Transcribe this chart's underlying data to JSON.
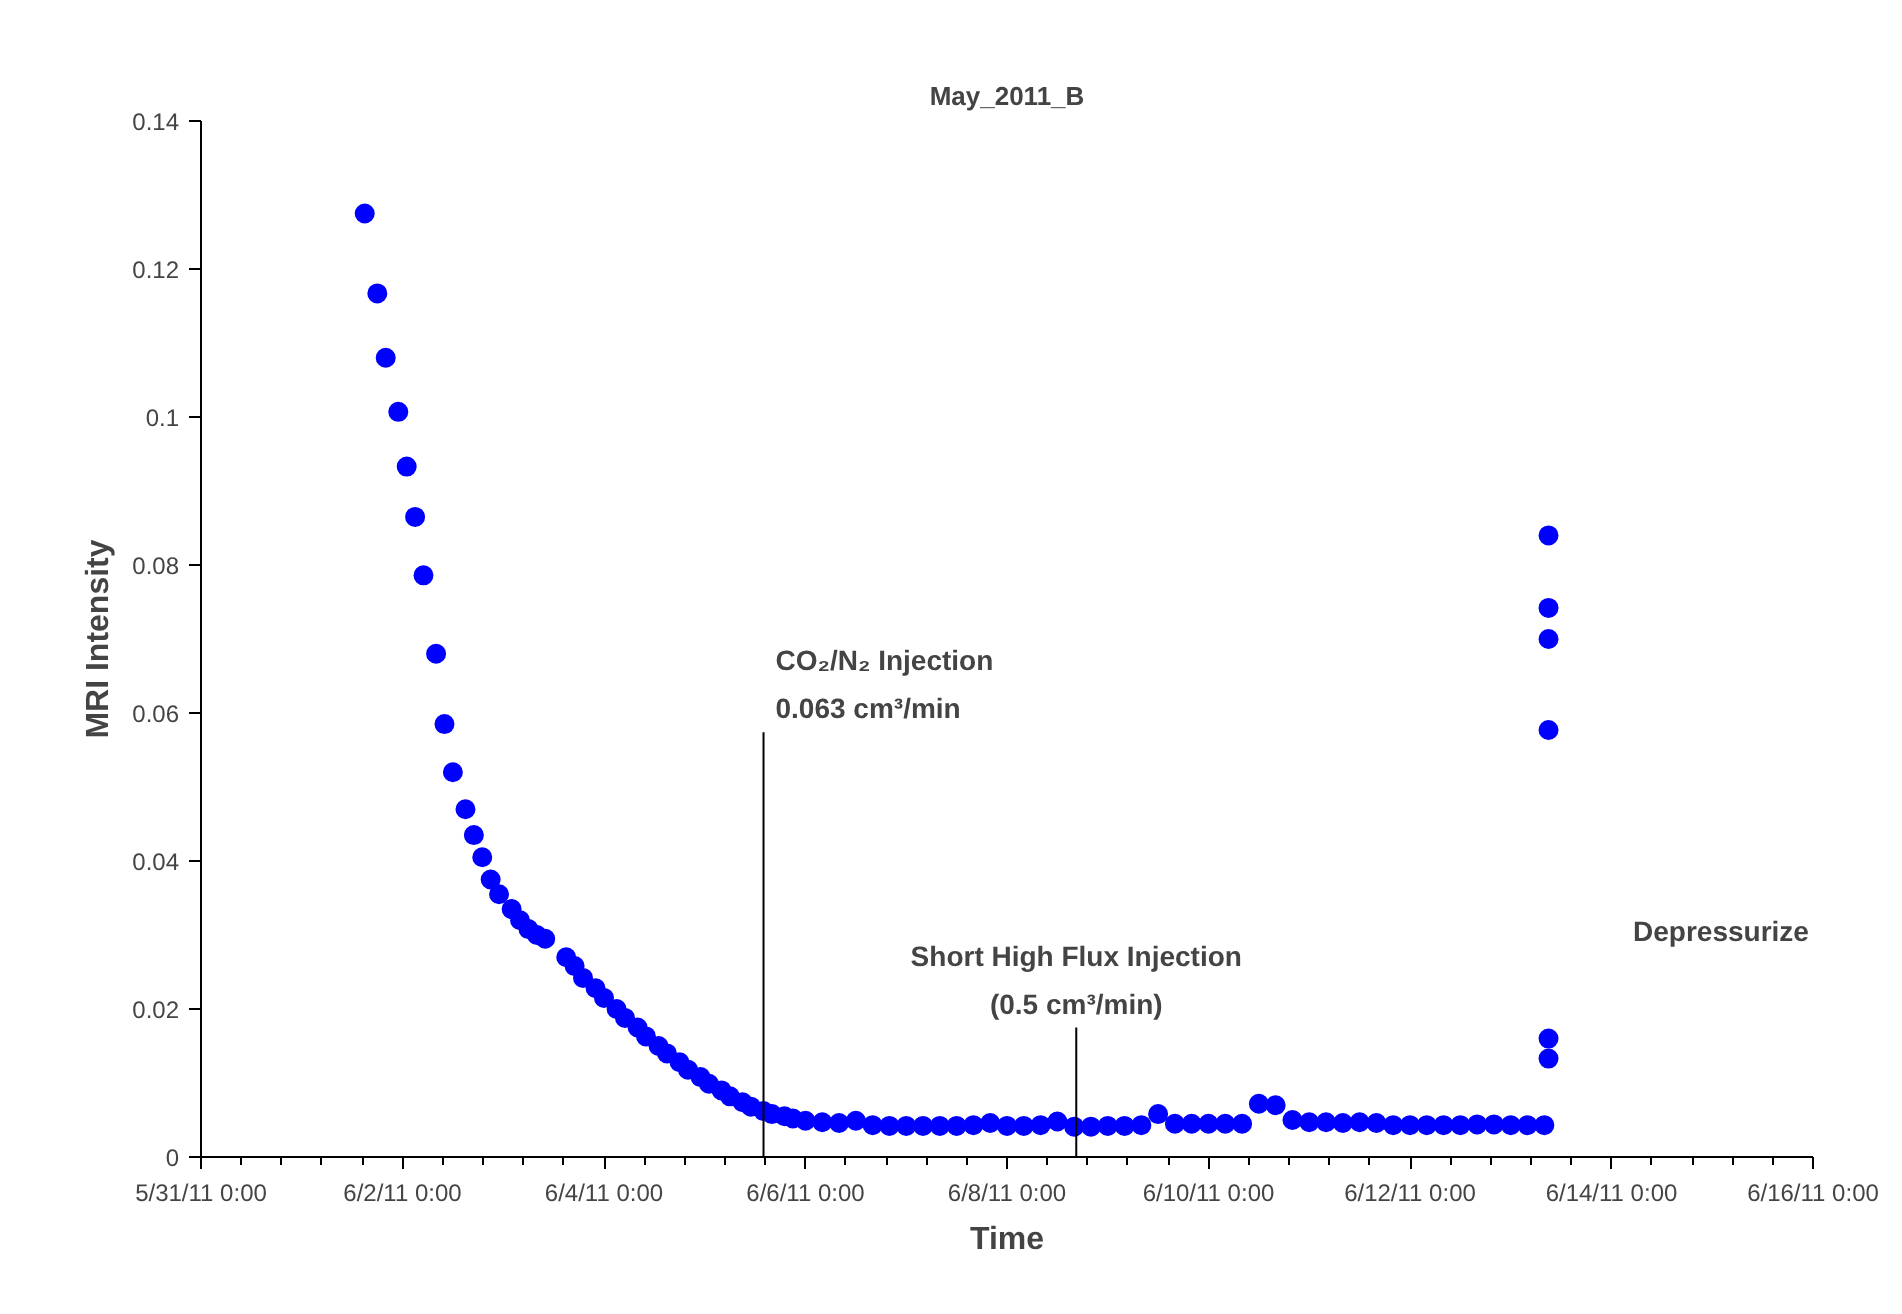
{
  "chart_data": {
    "type": "scatter",
    "title": "May_2011_B",
    "xlabel": "Time",
    "ylabel": "MRI Intensity",
    "xlim": [
      "2011-05-31",
      "2011-06-16"
    ],
    "xticks": [
      {
        "value": "2011-05-31",
        "label": "5/31/11 0:00"
      },
      {
        "value": "2011-06-02",
        "label": "6/2/11 0:00"
      },
      {
        "value": "2011-06-04",
        "label": "6/4/11 0:00"
      },
      {
        "value": "2011-06-06",
        "label": "6/6/11 0:00"
      },
      {
        "value": "2011-06-08",
        "label": "6/8/11 0:00"
      },
      {
        "value": "2011-06-10",
        "label": "6/10/11 0:00"
      },
      {
        "value": "2011-06-12",
        "label": "6/12/11 0:00"
      },
      {
        "value": "2011-06-14",
        "label": "6/14/11 0:00"
      },
      {
        "value": "2011-06-16",
        "label": "6/16/11 0:00"
      }
    ],
    "ylim": [
      0,
      0.14
    ],
    "yticks": [
      0,
      0.02,
      0.04,
      0.06,
      0.08,
      0.1,
      0.12,
      0.14
    ],
    "grid": false,
    "marker": "circle",
    "ref_lines": [
      {
        "axis": "x",
        "value": "2011-06-05T14:00",
        "label": "CO₂/N₂ Injection\n0.063 cm³/min"
      },
      {
        "axis": "x",
        "value": "2011-06-08T16:30",
        "label": "Short High Flux Injection\n(0.5 cm³/min)"
      }
    ],
    "annotations": [
      "Depressurize"
    ],
    "series": [
      {
        "color": "#0000ff",
        "x": [
          "2011-06-01T15:00",
          "2011-06-01T18:00",
          "2011-06-01T20:00",
          "2011-06-01T23:00",
          "2011-06-02T01:00",
          "2011-06-02T03:00",
          "2011-06-02T05:00",
          "2011-06-02T08:00",
          "2011-06-02T10:00",
          "2011-06-02T12:00",
          "2011-06-02T15:00",
          "2011-06-02T17:00",
          "2011-06-02T19:00",
          "2011-06-02T21:00",
          "2011-06-02T23:00",
          "2011-06-03T02:00",
          "2011-06-03T04:00",
          "2011-06-03T06:00",
          "2011-06-03T08:00",
          "2011-06-03T10:00",
          "2011-06-03T15:00",
          "2011-06-03T17:00",
          "2011-06-03T19:00",
          "2011-06-03T22:00",
          "2011-06-04T00:00",
          "2011-06-04T03:00",
          "2011-06-04T05:00",
          "2011-06-04T08:00",
          "2011-06-04T10:00",
          "2011-06-04T13:00",
          "2011-06-04T15:00",
          "2011-06-04T18:00",
          "2011-06-04T20:00",
          "2011-06-04T23:00",
          "2011-06-05T01:00",
          "2011-06-05T04:00",
          "2011-06-05T06:00",
          "2011-06-05T09:00",
          "2011-06-05T11:00",
          "2011-06-05T14:00",
          "2011-06-05T16:00",
          "2011-06-05T19:00",
          "2011-06-05T21:00",
          "2011-06-06T00:00",
          "2011-06-06T04:00",
          "2011-06-06T08:00",
          "2011-06-06T12:00",
          "2011-06-06T16:00",
          "2011-06-06T20:00",
          "2011-06-07T00:00",
          "2011-06-07T04:00",
          "2011-06-07T08:00",
          "2011-06-07T12:00",
          "2011-06-07T16:00",
          "2011-06-07T20:00",
          "2011-06-08T00:00",
          "2011-06-08T04:00",
          "2011-06-08T08:00",
          "2011-06-08T12:00",
          "2011-06-08T16:00",
          "2011-06-08T20:00",
          "2011-06-09T00:00",
          "2011-06-09T04:00",
          "2011-06-09T08:00",
          "2011-06-09T12:00",
          "2011-06-09T16:00",
          "2011-06-09T20:00",
          "2011-06-10T00:00",
          "2011-06-10T04:00",
          "2011-06-10T08:00",
          "2011-06-10T12:00",
          "2011-06-10T16:00",
          "2011-06-10T20:00",
          "2011-06-11T00:00",
          "2011-06-11T04:00",
          "2011-06-11T08:00",
          "2011-06-11T12:00",
          "2011-06-11T16:00",
          "2011-06-11T20:00",
          "2011-06-12T00:00",
          "2011-06-12T04:00",
          "2011-06-12T08:00",
          "2011-06-12T12:00",
          "2011-06-12T16:00",
          "2011-06-12T20:00",
          "2011-06-13T00:00",
          "2011-06-13T04:00",
          "2011-06-13T08:00",
          "2011-06-13T09:00",
          "2011-06-13T09:00",
          "2011-06-13T09:00",
          "2011-06-13T09:00",
          "2011-06-13T09:00",
          "2011-06-13T09:00"
        ],
        "values": [
          0.1275,
          0.1167,
          0.108,
          0.1007,
          0.0933,
          0.0865,
          0.0786,
          0.068,
          0.0585,
          0.052,
          0.047,
          0.0435,
          0.0405,
          0.0375,
          0.0355,
          0.0335,
          0.032,
          0.0308,
          0.03,
          0.0295,
          0.027,
          0.0258,
          0.0242,
          0.0228,
          0.0215,
          0.02,
          0.0188,
          0.0175,
          0.0163,
          0.015,
          0.014,
          0.0128,
          0.0118,
          0.0108,
          0.0099,
          0.009,
          0.0082,
          0.0074,
          0.0068,
          0.0062,
          0.0058,
          0.0055,
          0.0052,
          0.0049,
          0.0047,
          0.0046,
          0.0049,
          0.0043,
          0.0042,
          0.0042,
          0.0042,
          0.0042,
          0.0042,
          0.0043,
          0.0046,
          0.0042,
          0.0042,
          0.0043,
          0.0048,
          0.0041,
          0.0041,
          0.0042,
          0.0042,
          0.0043,
          0.0058,
          0.0045,
          0.0045,
          0.0045,
          0.0045,
          0.0045,
          0.0072,
          0.007,
          0.005,
          0.0047,
          0.0047,
          0.0046,
          0.0047,
          0.0046,
          0.0043,
          0.0043,
          0.0043,
          0.0043,
          0.0043,
          0.0044,
          0.0044,
          0.0043,
          0.0043,
          0.0043,
          0.084,
          0.0742,
          0.07,
          0.0577,
          0.016,
          0.0133
        ]
      }
    ]
  }
}
